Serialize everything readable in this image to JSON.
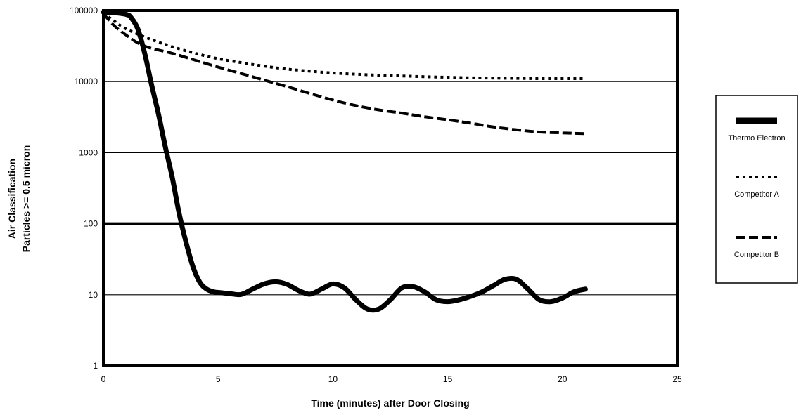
{
  "chart_data": {
    "type": "line",
    "title": "",
    "xlabel": "Time (minutes) after Door Closing",
    "ylabel_lines": [
      "Air Classification",
      "Particles >= 0.5 micron"
    ],
    "xlim": [
      0,
      25
    ],
    "ylim": [
      1,
      100000
    ],
    "yscale": "log",
    "x_ticks": [
      0,
      5,
      10,
      15,
      20,
      25
    ],
    "y_ticks": [
      1,
      10,
      100,
      1000,
      10000,
      100000
    ],
    "y_tick_labels": [
      "1",
      "10",
      "100",
      "1000",
      "10000",
      "100000"
    ],
    "grid": "horizontal",
    "emphasized_gridline": 100,
    "legend_position": "right",
    "series": [
      {
        "name": "Thermo Electron",
        "style": "solid-thick",
        "color": "#000000",
        "x": [
          0,
          0.5,
          1,
          1.2,
          1.5,
          1.8,
          2.1,
          2.4,
          2.7,
          3.0,
          3.3,
          3.6,
          3.9,
          4.2,
          4.5,
          4.8,
          5.0,
          5.5,
          6.0,
          6.5,
          7.0,
          7.5,
          8.0,
          8.5,
          9.0,
          9.5,
          10.0,
          10.5,
          11.0,
          11.5,
          12.0,
          12.5,
          13.0,
          13.5,
          14.0,
          14.5,
          15.0,
          15.5,
          16.0,
          16.5,
          17.0,
          17.5,
          18.0,
          18.5,
          19.0,
          19.5,
          20.0,
          20.5,
          21.0
        ],
        "y": [
          95000,
          93000,
          88000,
          80000,
          55000,
          25000,
          9000,
          3500,
          1200,
          450,
          140,
          55,
          25,
          15,
          12,
          11,
          10.8,
          10.4,
          10.1,
          12,
          14.2,
          15.2,
          14,
          11.5,
          10.2,
          12,
          14.2,
          12.5,
          8.5,
          6.3,
          6.3,
          8.5,
          12.5,
          13,
          11,
          8.5,
          8,
          8.5,
          9.5,
          11,
          13.5,
          16.5,
          16.5,
          12,
          8.5,
          8,
          9,
          11,
          12
        ]
      },
      {
        "name": "Competitor A",
        "style": "dotted",
        "color": "#000000",
        "x": [
          0,
          0.5,
          1,
          2,
          3,
          4,
          5,
          6,
          7,
          8,
          9,
          10,
          11,
          12,
          13,
          14,
          15,
          16,
          17,
          18,
          19,
          20,
          21
        ],
        "y": [
          92000,
          70000,
          55000,
          40000,
          31000,
          25000,
          21000,
          18500,
          16500,
          15000,
          14000,
          13200,
          12700,
          12300,
          12000,
          11700,
          11500,
          11300,
          11200,
          11100,
          11000,
          11000,
          11000
        ]
      },
      {
        "name": "Competitor B",
        "style": "dashed",
        "color": "#000000",
        "x": [
          0,
          0.5,
          1,
          1.5,
          2,
          3,
          4,
          5,
          6,
          7,
          8,
          9,
          10,
          11,
          12,
          13,
          14,
          15,
          16,
          17,
          18,
          19,
          20,
          21
        ],
        "y": [
          90000,
          60000,
          45000,
          35000,
          30000,
          25000,
          20000,
          16000,
          13000,
          10500,
          8500,
          6800,
          5500,
          4600,
          4000,
          3600,
          3200,
          2900,
          2600,
          2300,
          2100,
          1950,
          1900,
          1850
        ]
      }
    ]
  }
}
